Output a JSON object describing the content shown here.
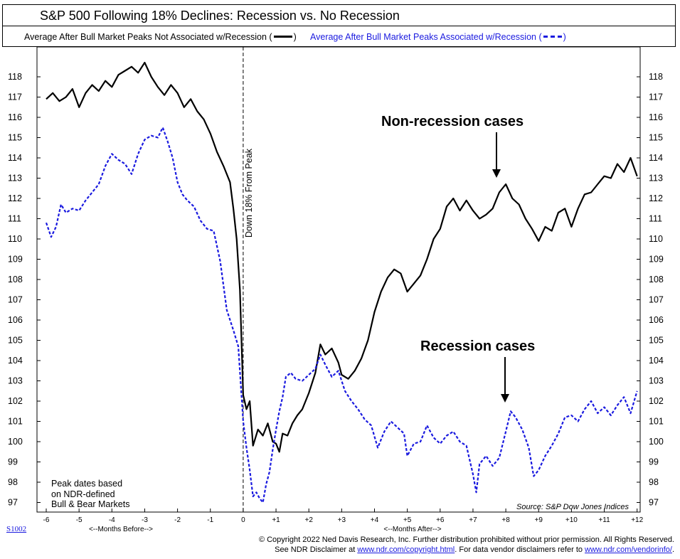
{
  "chart_data": {
    "type": "line",
    "title": "S&P 500 Following 18% Declines: Recession vs. No Recession",
    "x_axis": {
      "range": [
        -6,
        12
      ],
      "tick_labels": [
        "-6",
        "-5",
        "-4",
        "-3",
        "-2",
        "-1",
        "0",
        "+1",
        "+2",
        "+3",
        "+4",
        "+5",
        "+6",
        "+7",
        "+8",
        "+9",
        "+10",
        "+11",
        "+12"
      ],
      "label_before": "<--Months Before-->",
      "label_after": "<--Months After-->"
    },
    "y_axis": {
      "range": [
        96.5,
        119
      ],
      "ticks": [
        97,
        98,
        99,
        100,
        101,
        102,
        103,
        104,
        105,
        106,
        107,
        108,
        109,
        110,
        111,
        112,
        113,
        114,
        115,
        116,
        117,
        118
      ]
    },
    "vertical_marker": {
      "x": 0,
      "label": "Down 18% From Peak"
    },
    "series": [
      {
        "name": "Average After Bull Market Peaks Not Associated w/Recession",
        "color": "#000000",
        "style": "solid",
        "points": [
          [
            -6.0,
            116.9
          ],
          [
            -5.8,
            117.2
          ],
          [
            -5.6,
            116.8
          ],
          [
            -5.4,
            117.0
          ],
          [
            -5.2,
            117.4
          ],
          [
            -5.0,
            116.5
          ],
          [
            -4.8,
            117.2
          ],
          [
            -4.6,
            117.6
          ],
          [
            -4.4,
            117.3
          ],
          [
            -4.2,
            117.8
          ],
          [
            -4.0,
            117.5
          ],
          [
            -3.8,
            118.1
          ],
          [
            -3.6,
            118.3
          ],
          [
            -3.4,
            118.5
          ],
          [
            -3.2,
            118.2
          ],
          [
            -3.0,
            118.7
          ],
          [
            -2.8,
            118.0
          ],
          [
            -2.6,
            117.5
          ],
          [
            -2.4,
            117.1
          ],
          [
            -2.2,
            117.6
          ],
          [
            -2.0,
            117.2
          ],
          [
            -1.8,
            116.5
          ],
          [
            -1.6,
            116.9
          ],
          [
            -1.4,
            116.3
          ],
          [
            -1.2,
            115.9
          ],
          [
            -1.0,
            115.2
          ],
          [
            -0.8,
            114.3
          ],
          [
            -0.6,
            113.6
          ],
          [
            -0.4,
            112.8
          ],
          [
            -0.3,
            111.5
          ],
          [
            -0.2,
            110.0
          ],
          [
            -0.1,
            107.5
          ],
          [
            0.0,
            102.3
          ],
          [
            0.1,
            101.6
          ],
          [
            0.2,
            102.0
          ],
          [
            0.3,
            99.8
          ],
          [
            0.45,
            100.6
          ],
          [
            0.6,
            100.3
          ],
          [
            0.75,
            100.9
          ],
          [
            0.9,
            100.0
          ],
          [
            1.0,
            99.9
          ],
          [
            1.1,
            99.5
          ],
          [
            1.2,
            100.4
          ],
          [
            1.35,
            100.3
          ],
          [
            1.5,
            100.9
          ],
          [
            1.65,
            101.3
          ],
          [
            1.8,
            101.6
          ],
          [
            2.0,
            102.4
          ],
          [
            2.2,
            103.4
          ],
          [
            2.35,
            104.8
          ],
          [
            2.5,
            104.3
          ],
          [
            2.7,
            104.6
          ],
          [
            2.9,
            103.9
          ],
          [
            3.0,
            103.3
          ],
          [
            3.2,
            103.1
          ],
          [
            3.4,
            103.5
          ],
          [
            3.6,
            104.1
          ],
          [
            3.8,
            105.0
          ],
          [
            4.0,
            106.4
          ],
          [
            4.2,
            107.4
          ],
          [
            4.4,
            108.1
          ],
          [
            4.6,
            108.5
          ],
          [
            4.8,
            108.3
          ],
          [
            5.0,
            107.4
          ],
          [
            5.2,
            107.8
          ],
          [
            5.4,
            108.2
          ],
          [
            5.6,
            109.0
          ],
          [
            5.8,
            110.0
          ],
          [
            6.0,
            110.5
          ],
          [
            6.2,
            111.6
          ],
          [
            6.4,
            112.0
          ],
          [
            6.6,
            111.4
          ],
          [
            6.8,
            111.9
          ],
          [
            7.0,
            111.4
          ],
          [
            7.2,
            111.0
          ],
          [
            7.4,
            111.2
          ],
          [
            7.6,
            111.5
          ],
          [
            7.8,
            112.3
          ],
          [
            8.0,
            112.7
          ],
          [
            8.2,
            112.0
          ],
          [
            8.4,
            111.7
          ],
          [
            8.6,
            111.0
          ],
          [
            8.8,
            110.5
          ],
          [
            9.0,
            109.9
          ],
          [
            9.2,
            110.6
          ],
          [
            9.4,
            110.4
          ],
          [
            9.6,
            111.3
          ],
          [
            9.8,
            111.5
          ],
          [
            10.0,
            110.6
          ],
          [
            10.2,
            111.5
          ],
          [
            10.4,
            112.2
          ],
          [
            10.6,
            112.3
          ],
          [
            10.8,
            112.7
          ],
          [
            11.0,
            113.1
          ],
          [
            11.2,
            113.0
          ],
          [
            11.4,
            113.7
          ],
          [
            11.6,
            113.3
          ],
          [
            11.8,
            114.0
          ],
          [
            12.0,
            113.1
          ]
        ]
      },
      {
        "name": "Average After Bull Market Peaks Associated w/Recession",
        "color": "#1a1adf",
        "style": "dashed",
        "points": [
          [
            -6.0,
            110.8
          ],
          [
            -5.85,
            110.1
          ],
          [
            -5.7,
            110.6
          ],
          [
            -5.55,
            111.7
          ],
          [
            -5.4,
            111.3
          ],
          [
            -5.2,
            111.5
          ],
          [
            -5.0,
            111.4
          ],
          [
            -4.8,
            111.9
          ],
          [
            -4.6,
            112.3
          ],
          [
            -4.4,
            112.7
          ],
          [
            -4.2,
            113.6
          ],
          [
            -4.0,
            114.2
          ],
          [
            -3.8,
            113.9
          ],
          [
            -3.6,
            113.7
          ],
          [
            -3.4,
            113.2
          ],
          [
            -3.2,
            114.2
          ],
          [
            -3.0,
            114.9
          ],
          [
            -2.8,
            115.1
          ],
          [
            -2.6,
            115.0
          ],
          [
            -2.45,
            115.5
          ],
          [
            -2.3,
            114.8
          ],
          [
            -2.15,
            114.0
          ],
          [
            -2.0,
            112.8
          ],
          [
            -1.85,
            112.2
          ],
          [
            -1.7,
            111.9
          ],
          [
            -1.5,
            111.6
          ],
          [
            -1.3,
            110.9
          ],
          [
            -1.1,
            110.5
          ],
          [
            -0.9,
            110.4
          ],
          [
            -0.7,
            108.9
          ],
          [
            -0.5,
            106.5
          ],
          [
            -0.3,
            105.5
          ],
          [
            -0.15,
            104.7
          ],
          [
            0.0,
            101.0
          ],
          [
            0.1,
            99.7
          ],
          [
            0.2,
            98.6
          ],
          [
            0.3,
            97.3
          ],
          [
            0.4,
            97.5
          ],
          [
            0.5,
            97.2
          ],
          [
            0.6,
            97.0
          ],
          [
            0.7,
            97.9
          ],
          [
            0.8,
            98.5
          ],
          [
            0.9,
            99.6
          ],
          [
            1.0,
            100.6
          ],
          [
            1.1,
            101.5
          ],
          [
            1.2,
            102.2
          ],
          [
            1.3,
            103.2
          ],
          [
            1.45,
            103.4
          ],
          [
            1.6,
            103.1
          ],
          [
            1.8,
            103.0
          ],
          [
            2.0,
            103.3
          ],
          [
            2.2,
            103.6
          ],
          [
            2.35,
            104.3
          ],
          [
            2.5,
            103.8
          ],
          [
            2.7,
            103.2
          ],
          [
            2.9,
            103.5
          ],
          [
            3.1,
            102.5
          ],
          [
            3.3,
            102.0
          ],
          [
            3.5,
            101.6
          ],
          [
            3.7,
            101.1
          ],
          [
            3.9,
            100.8
          ],
          [
            4.1,
            99.7
          ],
          [
            4.3,
            100.5
          ],
          [
            4.5,
            101.0
          ],
          [
            4.7,
            100.7
          ],
          [
            4.9,
            100.4
          ],
          [
            5.0,
            99.3
          ],
          [
            5.2,
            99.9
          ],
          [
            5.4,
            100.0
          ],
          [
            5.6,
            100.8
          ],
          [
            5.8,
            100.2
          ],
          [
            6.0,
            99.9
          ],
          [
            6.2,
            100.3
          ],
          [
            6.4,
            100.5
          ],
          [
            6.6,
            100.0
          ],
          [
            6.8,
            99.8
          ],
          [
            7.0,
            98.4
          ],
          [
            7.1,
            97.5
          ],
          [
            7.2,
            98.9
          ],
          [
            7.4,
            99.3
          ],
          [
            7.6,
            98.8
          ],
          [
            7.8,
            99.2
          ],
          [
            8.0,
            100.5
          ],
          [
            8.15,
            101.5
          ],
          [
            8.3,
            101.2
          ],
          [
            8.5,
            100.6
          ],
          [
            8.7,
            99.7
          ],
          [
            8.85,
            98.3
          ],
          [
            9.0,
            98.6
          ],
          [
            9.2,
            99.3
          ],
          [
            9.4,
            99.8
          ],
          [
            9.6,
            100.4
          ],
          [
            9.8,
            101.2
          ],
          [
            10.0,
            101.3
          ],
          [
            10.2,
            101.0
          ],
          [
            10.4,
            101.6
          ],
          [
            10.6,
            102.0
          ],
          [
            10.8,
            101.4
          ],
          [
            11.0,
            101.7
          ],
          [
            11.2,
            101.3
          ],
          [
            11.4,
            101.8
          ],
          [
            11.6,
            102.2
          ],
          [
            11.8,
            101.4
          ],
          [
            12.0,
            102.5
          ]
        ]
      }
    ]
  },
  "legend": {
    "item1_label": "Average After Bull Market Peaks Not Associated w/Recession",
    "item2_label": "Average After Bull Market Peaks Associated w/Recession",
    "open_paren": "(",
    "close_paren": ")"
  },
  "annotations": {
    "non_recession": "Non-recession cases",
    "recession": "Recession cases"
  },
  "note": {
    "line1": "Peak dates based",
    "line2": "on NDR-defined",
    "line3": "Bull & Bear Markets"
  },
  "source": "Source: S&P Dow Jones Indices",
  "chart_id": "S1002",
  "footer": {
    "line1": "© Copyright 2022 Ned Davis Research, Inc.  Further distribution prohibited without prior permission.  All Rights Reserved.",
    "line2_prefix": "See NDR Disclaimer at ",
    "link1": "www.ndr.com/copyright.html",
    "line2_mid": ". For data vendor disclaimers refer to ",
    "link2": "www.ndr.com/vendorinfo/",
    "line2_suffix": "."
  }
}
